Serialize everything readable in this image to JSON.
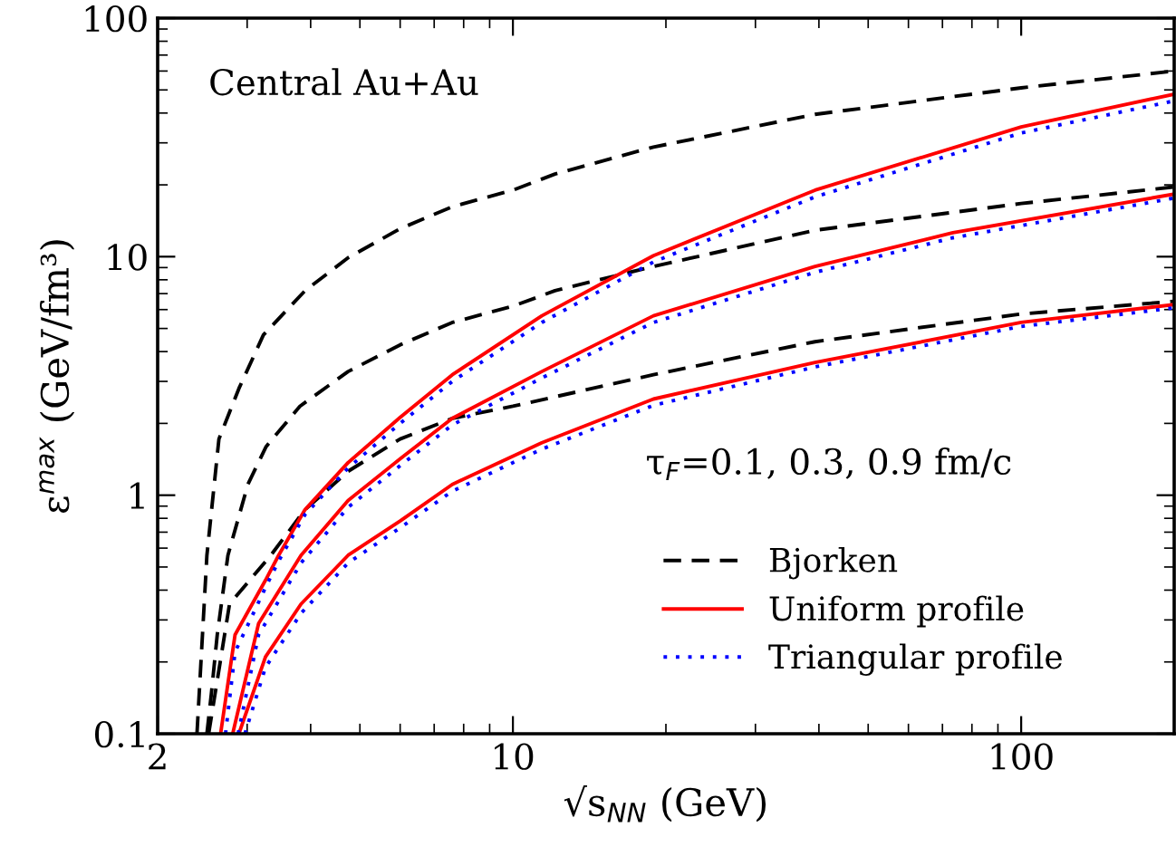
{
  "chart_data": {
    "type": "line",
    "xlabel": "√s$_{NN}$ (GeV)",
    "ylabel": "ε$^{max}$ (GeV/fm³)",
    "log": "xy",
    "xlim": [
      2,
      200
    ],
    "ylim": [
      0.1,
      100
    ],
    "xticks": [
      2,
      10,
      100
    ],
    "yticks": [
      0.1,
      1,
      10,
      100
    ],
    "grid": false,
    "legend": "bottom right",
    "marker": "none",
    "annotations": [
      "Central Au+Au",
      "τ$_{F}$=0.1, 0.3, 0.9 fm/c"
    ],
    "series": [
      {
        "name": "Bjorken",
        "color": "#000000",
        "line_style": "dashed",
        "x": [
          2.39,
          2.5,
          2.64,
          2.89,
          3.23,
          3.9,
          4.74,
          6.0,
          7.6,
          10,
          12.1,
          18.9,
          39.3,
          100,
          200
        ],
        "values": [
          0.1,
          0.56,
          1.72,
          2.8,
          4.7,
          7.2,
          9.9,
          13.1,
          16.2,
          19.0,
          22.2,
          28.8,
          39.5,
          51,
          60
        ]
      },
      {
        "color": "#000000",
        "line_style": "dashed",
        "x": [
          2.5,
          2.55,
          2.62,
          2.75,
          3.01,
          3.27,
          3.81,
          4.74,
          6.0,
          7.6,
          10,
          12.1,
          18.9,
          39.3,
          100,
          200
        ],
        "values": [
          0.1,
          0.146,
          0.26,
          0.56,
          1.11,
          1.6,
          2.36,
          3.3,
          4.27,
          5.3,
          6.2,
          7.2,
          9.1,
          12.9,
          16.7,
          19.6
        ]
      },
      {
        "color": "#000000",
        "line_style": "dashed",
        "x": [
          2.52,
          2.77,
          3.34,
          3.9,
          4.74,
          6.0,
          7.6,
          10,
          18.9,
          39.3,
          100,
          200
        ],
        "values": [
          0.1,
          0.35,
          0.56,
          0.87,
          1.26,
          1.72,
          2.1,
          2.36,
          3.2,
          4.4,
          5.75,
          6.5
        ]
      },
      {
        "name": "Uniform profile",
        "color": "#ff0000",
        "line_style": "solid",
        "x": [
          2.66,
          2.84,
          3.26,
          3.46,
          3.9,
          4.74,
          6.0,
          7.6,
          11.4,
          18.9,
          39.3,
          100,
          200
        ],
        "values": [
          0.1,
          0.26,
          0.44,
          0.56,
          0.87,
          1.37,
          2.12,
          3.2,
          5.65,
          10.1,
          19,
          35,
          48
        ]
      },
      {
        "color": "#ff0000",
        "line_style": "solid",
        "x": [
          2.81,
          3.16,
          3.83,
          4.74,
          6.0,
          7.6,
          11.4,
          18.9,
          39.3,
          73.4,
          200
        ],
        "values": [
          0.1,
          0.29,
          0.56,
          0.95,
          1.42,
          2.1,
          3.3,
          5.65,
          9.1,
          12.6,
          18.3
        ]
      },
      {
        "color": "#ff0000",
        "line_style": "solid",
        "x": [
          2.89,
          3.26,
          3.83,
          4.74,
          6.0,
          7.6,
          11.4,
          18.9,
          39.3,
          100,
          200
        ],
        "values": [
          0.1,
          0.21,
          0.35,
          0.56,
          0.78,
          1.11,
          1.66,
          2.53,
          3.6,
          5.3,
          6.3
        ]
      },
      {
        "name": "Triangular profile",
        "color": "#0000ff",
        "line_style": "dotted",
        "x": [
          2.72,
          2.84,
          3.26,
          3.46,
          3.9,
          4.74,
          6.0,
          7.6,
          11.4,
          18.9,
          39.3,
          100,
          200
        ],
        "values": [
          0.1,
          0.22,
          0.41,
          0.53,
          0.83,
          1.3,
          2.0,
          3.0,
          5.3,
          9.5,
          17.8,
          33,
          45
        ]
      },
      {
        "color": "#0000ff",
        "line_style": "dotted",
        "x": [
          2.88,
          3.16,
          3.83,
          4.74,
          6.0,
          7.6,
          11.4,
          18.9,
          39.3,
          73.4,
          200
        ],
        "values": [
          0.1,
          0.26,
          0.52,
          0.89,
          1.33,
          1.97,
          3.1,
          5.3,
          8.6,
          12.0,
          17.6
        ]
      },
      {
        "color": "#0000ff",
        "line_style": "dotted",
        "x": [
          2.97,
          3.26,
          3.83,
          4.74,
          6.0,
          7.6,
          11.4,
          18.9,
          39.3,
          100,
          200
        ],
        "values": [
          0.1,
          0.19,
          0.32,
          0.52,
          0.73,
          1.04,
          1.56,
          2.38,
          3.45,
          5.1,
          6.1
        ]
      }
    ]
  }
}
